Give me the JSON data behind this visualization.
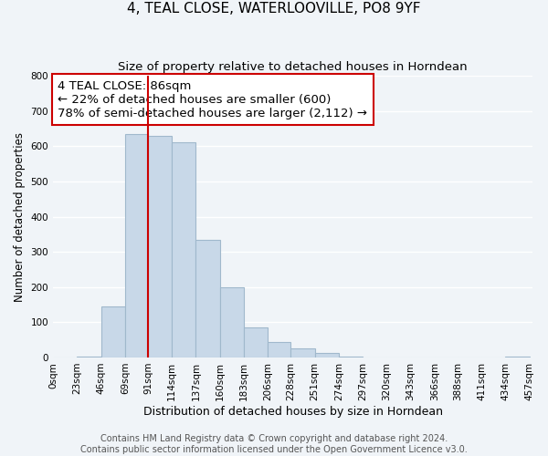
{
  "title": "4, TEAL CLOSE, WATERLOOVILLE, PO8 9YF",
  "subtitle": "Size of property relative to detached houses in Horndean",
  "xlabel": "Distribution of detached houses by size in Horndean",
  "ylabel": "Number of detached properties",
  "bar_left_edges": [
    0,
    23,
    46,
    69,
    91,
    114,
    137,
    160,
    183,
    206,
    228,
    251,
    274,
    297,
    320,
    343,
    366,
    388,
    411,
    434
  ],
  "bar_widths": [
    23,
    23,
    23,
    22,
    23,
    23,
    23,
    23,
    23,
    22,
    23,
    23,
    23,
    23,
    23,
    23,
    22,
    23,
    23,
    23
  ],
  "bar_heights": [
    0,
    2,
    145,
    635,
    630,
    610,
    335,
    200,
    85,
    45,
    27,
    12,
    2,
    0,
    0,
    0,
    0,
    0,
    0,
    3
  ],
  "bar_color": "#c8d8e8",
  "bar_edgecolor": "#a0b8cc",
  "bar_linewidth": 0.8,
  "x_tick_labels": [
    "0sqm",
    "23sqm",
    "46sqm",
    "69sqm",
    "91sqm",
    "114sqm",
    "137sqm",
    "160sqm",
    "183sqm",
    "206sqm",
    "228sqm",
    "251sqm",
    "274sqm",
    "297sqm",
    "320sqm",
    "343sqm",
    "366sqm",
    "388sqm",
    "411sqm",
    "434sqm",
    "457sqm"
  ],
  "x_tick_positions": [
    0,
    23,
    46,
    69,
    91,
    114,
    137,
    160,
    183,
    206,
    228,
    251,
    274,
    297,
    320,
    343,
    366,
    388,
    411,
    434,
    457
  ],
  "ylim": [
    0,
    800
  ],
  "xlim": [
    0,
    460
  ],
  "yticks": [
    0,
    100,
    200,
    300,
    400,
    500,
    600,
    700,
    800
  ],
  "vline_x": 91,
  "vline_color": "#cc0000",
  "vline_linewidth": 1.5,
  "annotation_line1": "4 TEAL CLOSE: 86sqm",
  "annotation_line2": "← 22% of detached houses are smaller (600)",
  "annotation_line3": "78% of semi-detached houses are larger (2,112) →",
  "annotation_fontsize": 9.5,
  "annotation_box_color": "white",
  "annotation_box_edgecolor": "#cc0000",
  "footer_line1": "Contains HM Land Registry data © Crown copyright and database right 2024.",
  "footer_line2": "Contains public sector information licensed under the Open Government Licence v3.0.",
  "background_color": "#f0f4f8",
  "grid_color": "white",
  "title_fontsize": 11,
  "subtitle_fontsize": 9.5,
  "xlabel_fontsize": 9,
  "ylabel_fontsize": 8.5,
  "tick_fontsize": 7.5,
  "footer_fontsize": 7
}
